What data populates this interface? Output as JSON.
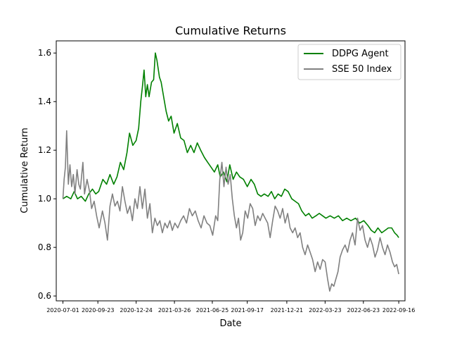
{
  "chart_data": {
    "type": "line",
    "title": "Cumulative Returns",
    "xlabel": "Date",
    "ylabel": "Cumulative Return",
    "x_tick_labels": [
      "2020-07-01",
      "2020-09-23",
      "2020-12-24",
      "2021-03-26",
      "2021-06-25",
      "2021-09-17",
      "2021-12-21",
      "2022-03-23",
      "2022-06-23",
      "2022-09-16"
    ],
    "y_ticks": [
      0.6,
      0.8,
      1.0,
      1.2,
      1.4,
      1.6
    ],
    "y_tick_labels": [
      "0.6",
      "0.8",
      "1.0",
      "1.2",
      "1.4",
      "1.6"
    ],
    "ylim": [
      0.58,
      1.65
    ],
    "xlim": [
      "2020-06-15",
      "2022-10-01"
    ],
    "legend_position": "upper right",
    "grid": false,
    "series": [
      {
        "name": "DDPG Agent",
        "color": "#008000",
        "points": [
          [
            "2020-07-01",
            1.0
          ],
          [
            "2020-07-10",
            1.01
          ],
          [
            "2020-07-20",
            1.0
          ],
          [
            "2020-07-28",
            1.03
          ],
          [
            "2020-08-05",
            1.0
          ],
          [
            "2020-08-14",
            1.01
          ],
          [
            "2020-08-24",
            0.99
          ],
          [
            "2020-09-01",
            1.02
          ],
          [
            "2020-09-10",
            1.04
          ],
          [
            "2020-09-18",
            1.02
          ],
          [
            "2020-09-25",
            1.03
          ],
          [
            "2020-10-05",
            1.08
          ],
          [
            "2020-10-14",
            1.06
          ],
          [
            "2020-10-22",
            1.1
          ],
          [
            "2020-10-31",
            1.06
          ],
          [
            "2020-11-08",
            1.09
          ],
          [
            "2020-11-16",
            1.15
          ],
          [
            "2020-11-24",
            1.12
          ],
          [
            "2020-12-02",
            1.19
          ],
          [
            "2020-12-08",
            1.27
          ],
          [
            "2020-12-16",
            1.22
          ],
          [
            "2020-12-24",
            1.24
          ],
          [
            "2020-12-30",
            1.29
          ],
          [
            "2021-01-04",
            1.4
          ],
          [
            "2021-01-08",
            1.46
          ],
          [
            "2021-01-12",
            1.53
          ],
          [
            "2021-01-16",
            1.42
          ],
          [
            "2021-01-20",
            1.47
          ],
          [
            "2021-01-24",
            1.42
          ],
          [
            "2021-01-30",
            1.48
          ],
          [
            "2021-02-04",
            1.49
          ],
          [
            "2021-02-08",
            1.6
          ],
          [
            "2021-02-12",
            1.57
          ],
          [
            "2021-02-18",
            1.5
          ],
          [
            "2021-02-22",
            1.48
          ],
          [
            "2021-03-01",
            1.41
          ],
          [
            "2021-03-06",
            1.36
          ],
          [
            "2021-03-12",
            1.32
          ],
          [
            "2021-03-18",
            1.34
          ],
          [
            "2021-03-25",
            1.27
          ],
          [
            "2021-04-02",
            1.31
          ],
          [
            "2021-04-10",
            1.25
          ],
          [
            "2021-04-18",
            1.24
          ],
          [
            "2021-04-26",
            1.19
          ],
          [
            "2021-05-04",
            1.22
          ],
          [
            "2021-05-12",
            1.19
          ],
          [
            "2021-05-20",
            1.23
          ],
          [
            "2021-05-28",
            1.2
          ],
          [
            "2021-06-06",
            1.17
          ],
          [
            "2021-06-14",
            1.15
          ],
          [
            "2021-06-22",
            1.13
          ],
          [
            "2021-06-30",
            1.11
          ],
          [
            "2021-07-08",
            1.14
          ],
          [
            "2021-07-14",
            1.09
          ],
          [
            "2021-07-22",
            1.11
          ],
          [
            "2021-07-30",
            1.07
          ],
          [
            "2021-08-06",
            1.14
          ],
          [
            "2021-08-14",
            1.08
          ],
          [
            "2021-08-22",
            1.11
          ],
          [
            "2021-08-30",
            1.09
          ],
          [
            "2021-09-08",
            1.08
          ],
          [
            "2021-09-17",
            1.05
          ],
          [
            "2021-09-26",
            1.08
          ],
          [
            "2021-10-04",
            1.06
          ],
          [
            "2021-10-12",
            1.02
          ],
          [
            "2021-10-20",
            1.01
          ],
          [
            "2021-10-28",
            1.02
          ],
          [
            "2021-11-06",
            1.01
          ],
          [
            "2021-11-14",
            1.03
          ],
          [
            "2021-11-22",
            1.0
          ],
          [
            "2021-11-30",
            1.02
          ],
          [
            "2021-12-08",
            1.01
          ],
          [
            "2021-12-16",
            1.04
          ],
          [
            "2021-12-24",
            1.03
          ],
          [
            "2022-01-02",
            1.0
          ],
          [
            "2022-01-10",
            0.99
          ],
          [
            "2022-01-18",
            0.98
          ],
          [
            "2022-01-26",
            0.95
          ],
          [
            "2022-02-04",
            0.93
          ],
          [
            "2022-02-12",
            0.94
          ],
          [
            "2022-02-20",
            0.92
          ],
          [
            "2022-03-01",
            0.93
          ],
          [
            "2022-03-09",
            0.94
          ],
          [
            "2022-03-17",
            0.93
          ],
          [
            "2022-03-25",
            0.92
          ],
          [
            "2022-04-04",
            0.93
          ],
          [
            "2022-04-14",
            0.92
          ],
          [
            "2022-04-24",
            0.93
          ],
          [
            "2022-05-04",
            0.91
          ],
          [
            "2022-05-14",
            0.92
          ],
          [
            "2022-05-24",
            0.91
          ],
          [
            "2022-06-04",
            0.92
          ],
          [
            "2022-06-14",
            0.9
          ],
          [
            "2022-06-24",
            0.91
          ],
          [
            "2022-07-04",
            0.89
          ],
          [
            "2022-07-12",
            0.87
          ],
          [
            "2022-07-20",
            0.86
          ],
          [
            "2022-07-28",
            0.88
          ],
          [
            "2022-08-06",
            0.86
          ],
          [
            "2022-08-14",
            0.87
          ],
          [
            "2022-08-22",
            0.88
          ],
          [
            "2022-08-30",
            0.88
          ],
          [
            "2022-09-06",
            0.86
          ],
          [
            "2022-09-12",
            0.85
          ],
          [
            "2022-09-16",
            0.84
          ]
        ]
      },
      {
        "name": "SSE 50 Index",
        "color": "#808080",
        "points": [
          [
            "2020-07-01",
            1.0
          ],
          [
            "2020-07-04",
            1.08
          ],
          [
            "2020-07-07",
            1.13
          ],
          [
            "2020-07-10",
            1.28
          ],
          [
            "2020-07-14",
            1.06
          ],
          [
            "2020-07-18",
            1.14
          ],
          [
            "2020-07-22",
            1.05
          ],
          [
            "2020-07-26",
            1.1
          ],
          [
            "2020-07-30",
            1.02
          ],
          [
            "2020-08-04",
            1.12
          ],
          [
            "2020-08-08",
            1.06
          ],
          [
            "2020-08-12",
            1.04
          ],
          [
            "2020-08-18",
            1.15
          ],
          [
            "2020-08-22",
            1.02
          ],
          [
            "2020-08-28",
            1.08
          ],
          [
            "2020-09-03",
            1.03
          ],
          [
            "2020-09-08",
            0.96
          ],
          [
            "2020-09-14",
            0.99
          ],
          [
            "2020-09-20",
            0.93
          ],
          [
            "2020-09-26",
            0.88
          ],
          [
            "2020-10-04",
            0.95
          ],
          [
            "2020-10-10",
            0.9
          ],
          [
            "2020-10-16",
            0.83
          ],
          [
            "2020-10-22",
            0.97
          ],
          [
            "2020-10-28",
            1.02
          ],
          [
            "2020-11-03",
            0.97
          ],
          [
            "2020-11-09",
            0.99
          ],
          [
            "2020-11-15",
            0.95
          ],
          [
            "2020-11-21",
            1.05
          ],
          [
            "2020-11-27",
            0.99
          ],
          [
            "2020-12-03",
            0.94
          ],
          [
            "2020-12-09",
            0.97
          ],
          [
            "2020-12-15",
            0.91
          ],
          [
            "2020-12-21",
            1.0
          ],
          [
            "2020-12-27",
            0.96
          ],
          [
            "2021-01-02",
            1.05
          ],
          [
            "2021-01-08",
            0.96
          ],
          [
            "2021-01-14",
            1.04
          ],
          [
            "2021-01-20",
            0.92
          ],
          [
            "2021-01-26",
            0.98
          ],
          [
            "2021-02-01",
            0.86
          ],
          [
            "2021-02-07",
            0.92
          ],
          [
            "2021-02-13",
            0.89
          ],
          [
            "2021-02-19",
            0.91
          ],
          [
            "2021-02-25",
            0.86
          ],
          [
            "2021-03-03",
            0.9
          ],
          [
            "2021-03-09",
            0.88
          ],
          [
            "2021-03-15",
            0.91
          ],
          [
            "2021-03-21",
            0.87
          ],
          [
            "2021-03-27",
            0.9
          ],
          [
            "2021-04-03",
            0.88
          ],
          [
            "2021-04-10",
            0.91
          ],
          [
            "2021-04-17",
            0.93
          ],
          [
            "2021-04-24",
            0.9
          ],
          [
            "2021-05-01",
            0.96
          ],
          [
            "2021-05-08",
            0.93
          ],
          [
            "2021-05-15",
            0.95
          ],
          [
            "2021-05-22",
            0.91
          ],
          [
            "2021-05-29",
            0.88
          ],
          [
            "2021-06-05",
            0.93
          ],
          [
            "2021-06-12",
            0.9
          ],
          [
            "2021-06-19",
            0.89
          ],
          [
            "2021-06-26",
            0.85
          ],
          [
            "2021-07-03",
            0.93
          ],
          [
            "2021-07-08",
            0.91
          ],
          [
            "2021-07-13",
            1.08
          ],
          [
            "2021-07-18",
            1.15
          ],
          [
            "2021-07-23",
            1.05
          ],
          [
            "2021-07-28",
            1.13
          ],
          [
            "2021-08-02",
            1.06
          ],
          [
            "2021-08-07",
            1.1
          ],
          [
            "2021-08-12",
            1.0
          ],
          [
            "2021-08-17",
            0.93
          ],
          [
            "2021-08-22",
            0.88
          ],
          [
            "2021-08-27",
            0.92
          ],
          [
            "2021-09-01",
            0.83
          ],
          [
            "2021-09-06",
            0.86
          ],
          [
            "2021-09-12",
            0.95
          ],
          [
            "2021-09-18",
            0.92
          ],
          [
            "2021-09-24",
            0.98
          ],
          [
            "2021-09-30",
            0.96
          ],
          [
            "2021-10-06",
            0.89
          ],
          [
            "2021-10-12",
            0.93
          ],
          [
            "2021-10-18",
            0.91
          ],
          [
            "2021-10-24",
            0.94
          ],
          [
            "2021-10-30",
            0.92
          ],
          [
            "2021-11-05",
            0.9
          ],
          [
            "2021-11-11",
            0.84
          ],
          [
            "2021-11-17",
            0.91
          ],
          [
            "2021-11-23",
            0.97
          ],
          [
            "2021-11-29",
            0.95
          ],
          [
            "2021-12-05",
            0.92
          ],
          [
            "2021-12-11",
            0.96
          ],
          [
            "2021-12-17",
            0.9
          ],
          [
            "2021-12-23",
            0.94
          ],
          [
            "2021-12-29",
            0.88
          ],
          [
            "2022-01-04",
            0.86
          ],
          [
            "2022-01-10",
            0.88
          ],
          [
            "2022-01-16",
            0.84
          ],
          [
            "2022-01-22",
            0.86
          ],
          [
            "2022-01-28",
            0.8
          ],
          [
            "2022-02-03",
            0.77
          ],
          [
            "2022-02-09",
            0.81
          ],
          [
            "2022-02-15",
            0.78
          ],
          [
            "2022-02-21",
            0.75
          ],
          [
            "2022-02-27",
            0.7
          ],
          [
            "2022-03-05",
            0.74
          ],
          [
            "2022-03-11",
            0.71
          ],
          [
            "2022-03-17",
            0.75
          ],
          [
            "2022-03-23",
            0.74
          ],
          [
            "2022-03-29",
            0.67
          ],
          [
            "2022-04-03",
            0.62
          ],
          [
            "2022-04-08",
            0.65
          ],
          [
            "2022-04-13",
            0.64
          ],
          [
            "2022-04-18",
            0.67
          ],
          [
            "2022-04-23",
            0.7
          ],
          [
            "2022-04-28",
            0.76
          ],
          [
            "2022-05-04",
            0.79
          ],
          [
            "2022-05-10",
            0.81
          ],
          [
            "2022-05-16",
            0.78
          ],
          [
            "2022-05-22",
            0.83
          ],
          [
            "2022-05-28",
            0.86
          ],
          [
            "2022-06-03",
            0.81
          ],
          [
            "2022-06-09",
            0.92
          ],
          [
            "2022-06-15",
            0.87
          ],
          [
            "2022-06-21",
            0.89
          ],
          [
            "2022-06-27",
            0.83
          ],
          [
            "2022-07-03",
            0.8
          ],
          [
            "2022-07-09",
            0.84
          ],
          [
            "2022-07-15",
            0.81
          ],
          [
            "2022-07-21",
            0.76
          ],
          [
            "2022-07-27",
            0.79
          ],
          [
            "2022-08-02",
            0.84
          ],
          [
            "2022-08-08",
            0.8
          ],
          [
            "2022-08-14",
            0.77
          ],
          [
            "2022-08-20",
            0.81
          ],
          [
            "2022-08-26",
            0.78
          ],
          [
            "2022-09-01",
            0.74
          ],
          [
            "2022-09-06",
            0.72
          ],
          [
            "2022-09-11",
            0.73
          ],
          [
            "2022-09-16",
            0.69
          ]
        ]
      }
    ]
  }
}
